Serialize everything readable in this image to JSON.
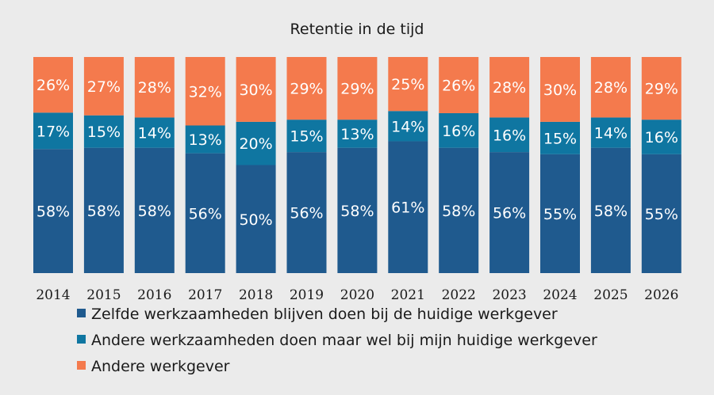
{
  "chart_data": {
    "type": "bar",
    "stacked": true,
    "title": "Retentie in de tijd",
    "xlabel": "",
    "ylabel": "",
    "categories": [
      "2014",
      "2015",
      "2016",
      "2017",
      "2018",
      "2019",
      "2020",
      "2021",
      "2022",
      "2023",
      "2024",
      "2025",
      "2026"
    ],
    "series": [
      {
        "name": "Zelfde werkzaamheden blijven doen bij de huidige werkgever",
        "color": "#1f5a8e",
        "values": [
          58,
          58,
          58,
          56,
          50,
          56,
          58,
          61,
          58,
          56,
          55,
          58,
          55
        ],
        "labels": [
          "58%",
          "58%",
          "58%",
          "56%",
          "50%",
          "56%",
          "58%",
          "61%",
          "58%",
          "56%",
          "55%",
          "58%",
          "55%"
        ]
      },
      {
        "name": "Andere werkzaamheden doen maar wel bij mijn huidige werkgever",
        "color": "#0f76a1",
        "values": [
          17,
          15,
          14,
          13,
          20,
          15,
          13,
          14,
          16,
          16,
          15,
          14,
          16
        ],
        "labels": [
          "17%",
          "15%",
          "14%",
          "13%",
          "20%",
          "15%",
          "13%",
          "14%",
          "16%",
          "16%",
          "15%",
          "14%",
          "16%"
        ]
      },
      {
        "name": "Andere werkgever",
        "color": "#f47a4d",
        "values": [
          26,
          27,
          28,
          32,
          30,
          29,
          29,
          25,
          26,
          28,
          30,
          28,
          29
        ],
        "labels": [
          "26%",
          "27%",
          "28%",
          "32%",
          "30%",
          "29%",
          "29%",
          "25%",
          "26%",
          "28%",
          "30%",
          "28%",
          "29%"
        ]
      }
    ],
    "ylim": [
      0,
      100
    ],
    "grid": false,
    "legend": "bottom-left"
  }
}
